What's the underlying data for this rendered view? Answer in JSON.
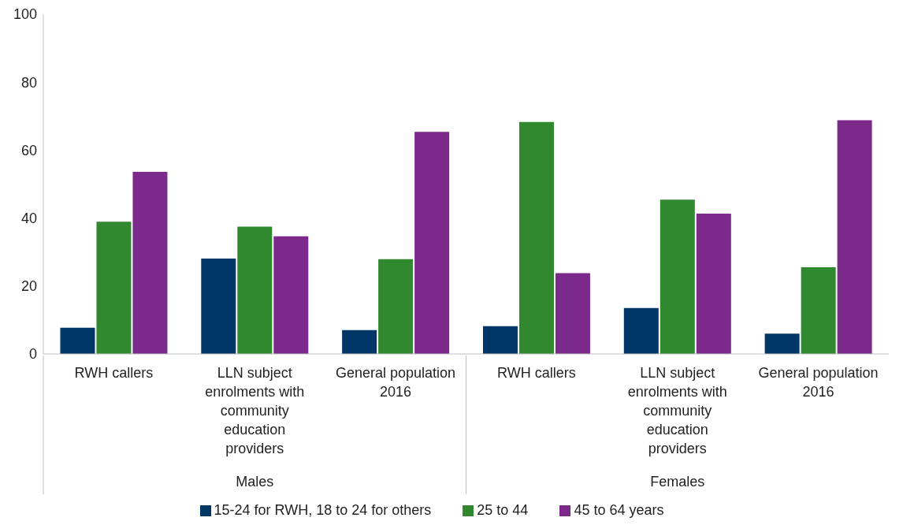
{
  "chart_data": {
    "type": "bar",
    "categories": [
      "RWH callers",
      "LLN subject enrolments with community education providers",
      "General population 2016",
      "RWH callers",
      "LLN subject enrolments with community education providers",
      "General population 2016"
    ],
    "series": [
      {
        "name": "15-24 for RWH, 18 to 24 for others",
        "color": "#003767",
        "values": [
          7.7,
          28.1,
          7.0,
          8.2,
          13.5,
          6.0
        ]
      },
      {
        "name": "25 to 44",
        "color": "#31892f",
        "values": [
          38.9,
          37.5,
          27.9,
          68.3,
          45.4,
          25.5
        ]
      },
      {
        "name": "45 to 64 years",
        "color": "#7b2a8b",
        "values": [
          53.6,
          34.6,
          65.4,
          23.8,
          41.3,
          68.8
        ]
      }
    ],
    "annotations": [
      "Males",
      "Females"
    ],
    "ylim": [
      0,
      100
    ],
    "yticks": [
      0,
      20,
      40,
      60,
      80,
      100
    ],
    "legend": "bottom"
  }
}
